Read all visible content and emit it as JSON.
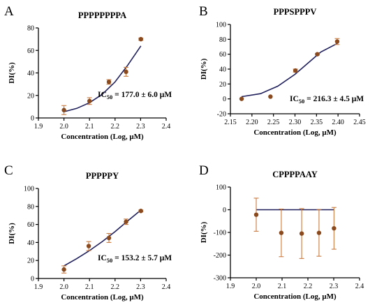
{
  "colors": {
    "curve": "#1f1f5c",
    "point": "#8b4a1e",
    "errorbar": "#c97a3f",
    "axis": "#000000"
  },
  "chart_data": [
    {
      "panel_letter": "A",
      "type": "scatter",
      "title": "PPPPPPPPA",
      "xlabel": "Concentration (Log, μM)",
      "ylabel": "DI(%)",
      "xlim": [
        1.9,
        2.4
      ],
      "ylim": [
        0,
        80
      ],
      "xticks": [
        "1.9",
        "2.0",
        "2.1",
        "2.2",
        "2.3",
        "2.4"
      ],
      "yticks": [
        "0",
        "20",
        "40",
        "60",
        "80"
      ],
      "points": [
        {
          "x": 2.0,
          "y": 7,
          "err": 4
        },
        {
          "x": 2.1,
          "y": 15,
          "err": 3
        },
        {
          "x": 2.176,
          "y": 32,
          "err": 2
        },
        {
          "x": 2.243,
          "y": 41,
          "err": 4
        },
        {
          "x": 2.301,
          "y": 70,
          "err": 1
        }
      ],
      "curve": [
        [
          2.0,
          5.5
        ],
        [
          2.05,
          8.5
        ],
        [
          2.1,
          13.5
        ],
        [
          2.15,
          21
        ],
        [
          2.2,
          32
        ],
        [
          2.25,
          47
        ],
        [
          2.301,
          64
        ]
      ],
      "annotation": {
        "prefix": "IC",
        "sub": "50",
        "text": " = 177.0 ± 6.0 μM"
      }
    },
    {
      "panel_letter": "B",
      "type": "scatter",
      "title": "PPPSPPPV",
      "xlabel": "Concentration (Log, μM)",
      "ylabel": "DI(%)",
      "xlim": [
        2.15,
        2.45
      ],
      "ylim": [
        -20,
        100
      ],
      "xticks": [
        "2.15",
        "2.20",
        "2.25",
        "2.30",
        "2.35",
        "2.40",
        "2.45"
      ],
      "yticks": [
        "-20",
        "0",
        "20",
        "40",
        "60",
        "80",
        "100"
      ],
      "points": [
        {
          "x": 2.176,
          "y": 0,
          "err": 0
        },
        {
          "x": 2.243,
          "y": 3,
          "err": 0
        },
        {
          "x": 2.301,
          "y": 38,
          "err": 2
        },
        {
          "x": 2.352,
          "y": 60,
          "err": 1
        },
        {
          "x": 2.398,
          "y": 77,
          "err": 4
        }
      ],
      "curve": [
        [
          2.176,
          3
        ],
        [
          2.22,
          7
        ],
        [
          2.26,
          17
        ],
        [
          2.3,
          33
        ],
        [
          2.33,
          48
        ],
        [
          2.36,
          63
        ],
        [
          2.4,
          75
        ]
      ],
      "annotation": {
        "prefix": "IC",
        "sub": "50",
        "text": " = 216.3 ± 4.5 μM"
      }
    },
    {
      "panel_letter": "C",
      "type": "scatter",
      "title": "PPPPPY",
      "xlabel": "Concentration (Log, μM)",
      "ylabel": "DI(%)",
      "xlim": [
        1.9,
        2.4
      ],
      "ylim": [
        0,
        100
      ],
      "xticks": [
        "1.9",
        "2.0",
        "2.1",
        "2.2",
        "2.3",
        "2.4"
      ],
      "yticks": [
        "0",
        "20",
        "40",
        "60",
        "80",
        "100"
      ],
      "points": [
        {
          "x": 2.0,
          "y": 10,
          "err": 4
        },
        {
          "x": 2.097,
          "y": 36,
          "err": 5
        },
        {
          "x": 2.176,
          "y": 45,
          "err": 5
        },
        {
          "x": 2.243,
          "y": 63,
          "err": 3
        },
        {
          "x": 2.301,
          "y": 75,
          "err": 1
        }
      ],
      "curve": [
        [
          2.0,
          14
        ],
        [
          2.05,
          22
        ],
        [
          2.1,
          31
        ],
        [
          2.15,
          41
        ],
        [
          2.2,
          52
        ],
        [
          2.25,
          64
        ],
        [
          2.301,
          76
        ]
      ],
      "annotation": {
        "prefix": "IC",
        "sub": "50",
        "text": " = 153.2 ± 5.7 μM"
      }
    },
    {
      "panel_letter": "D",
      "type": "scatter",
      "title": "CPPPPAAY",
      "xlabel": "Concentration (Log, μM)",
      "ylabel": "DI(%)",
      "xlim": [
        1.9,
        2.4
      ],
      "ylim": [
        -300,
        100
      ],
      "xticks": [
        "1.9",
        "2.0",
        "2.1",
        "2.2",
        "2.3",
        "2.4"
      ],
      "yticks": [
        "-300",
        "-200",
        "-100",
        "0",
        "100"
      ],
      "points": [
        {
          "x": 2.0,
          "y": -22,
          "err": 73
        },
        {
          "x": 2.097,
          "y": -102,
          "err": 105
        },
        {
          "x": 2.176,
          "y": -105,
          "err": 110
        },
        {
          "x": 2.243,
          "y": -102,
          "err": 103
        },
        {
          "x": 2.301,
          "y": -82,
          "err": 92
        }
      ],
      "curve": [
        [
          2.0,
          0
        ],
        [
          2.301,
          0
        ]
      ],
      "annotation": null
    }
  ]
}
